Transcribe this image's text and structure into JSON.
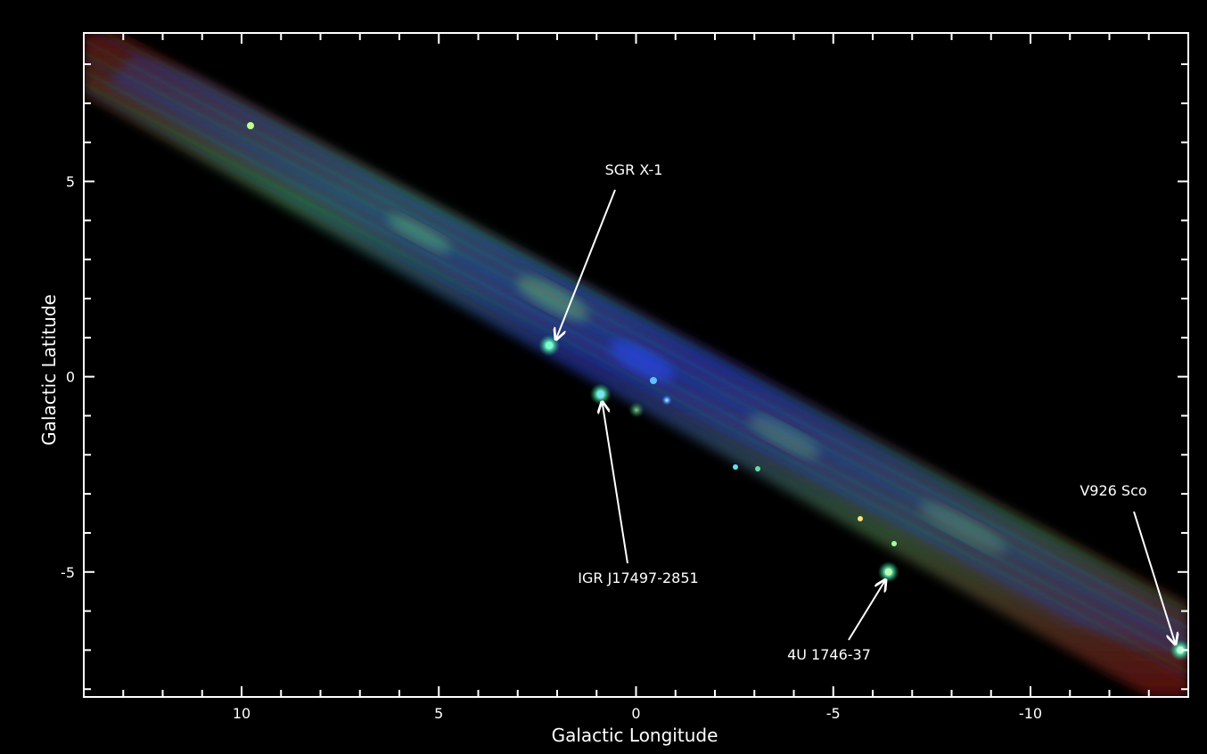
{
  "image": {
    "type": "x-ray sky map",
    "axes": {
      "xlabel": "Galactic Longitude",
      "ylabel": "Galactic Latitude",
      "x_ticks": [
        "10",
        "5",
        "0",
        "-5",
        "-10"
      ],
      "y_ticks": [
        "5",
        "0",
        "-5"
      ],
      "xlim": [
        14,
        -14
      ],
      "ylim": [
        -8.2,
        8.8
      ]
    },
    "sources": [
      {
        "label": "SGR X-1",
        "l": 2.2,
        "b": 0.8,
        "color": "#7fffd4"
      },
      {
        "label": "IGR J17497-2851",
        "l": 0.9,
        "b": -0.45,
        "color": "#80dfff"
      },
      {
        "label": "4U 1746-37",
        "l": -6.4,
        "b": -5.0,
        "color": "#c0ffb0"
      },
      {
        "label": "V926 Sco",
        "l": -13.8,
        "b": -7.0,
        "color": "#c0ffd0"
      }
    ],
    "colors": {
      "background": "#000000",
      "frame": "#ffffff",
      "band_red": "#b01818",
      "band_green": "#3fae6a",
      "band_blue": "#2a40c8"
    }
  }
}
